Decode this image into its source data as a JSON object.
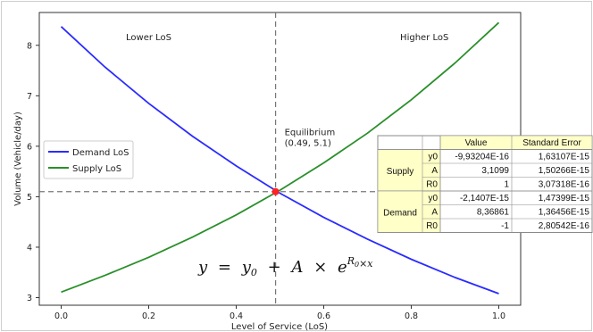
{
  "chart_data": {
    "type": "line",
    "xlabel": "Level of Service (LoS)",
    "ylabel": "Volume (Vehicle/day)",
    "xlim": [
      -0.05,
      1.05
    ],
    "ylim": [
      2.85,
      8.65
    ],
    "xticks": [
      "0.0",
      "0.2",
      "0.4",
      "0.6",
      "0.8",
      "1.0"
    ],
    "yticks": [
      "3",
      "4",
      "5",
      "6",
      "7",
      "8"
    ],
    "grid": false,
    "legend_position": "center-left",
    "series": [
      {
        "name": "Demand LoS",
        "color": "#2b2bff",
        "x": [
          0.0,
          0.1,
          0.2,
          0.3,
          0.4,
          0.5,
          0.6,
          0.7,
          0.8,
          0.9,
          1.0
        ],
        "values": [
          8.37,
          7.57,
          6.85,
          6.2,
          5.61,
          5.07,
          4.59,
          4.16,
          3.76,
          3.4,
          3.08
        ]
      },
      {
        "name": "Supply LoS",
        "color": "#2a8f2a",
        "x": [
          0.0,
          0.1,
          0.2,
          0.3,
          0.4,
          0.5,
          0.6,
          0.7,
          0.8,
          0.9,
          1.0
        ],
        "values": [
          3.11,
          3.44,
          3.8,
          4.2,
          4.64,
          5.13,
          5.67,
          6.26,
          6.92,
          7.65,
          8.45
        ]
      }
    ],
    "equilibrium": {
      "x": 0.49,
      "y": 5.1,
      "label": "Equilibrium",
      "coords": "(0.49, 5.1)",
      "color": "#ff2222"
    },
    "region_labels": [
      {
        "text": "Lower LoS",
        "color": "#2b2bff",
        "x": 0.2,
        "y": 8.1
      },
      {
        "text": "Higher LoS",
        "color": "#2a8f2a",
        "x": 0.83,
        "y": 8.1
      }
    ],
    "formula": {
      "lhs": "y",
      "y0": "y",
      "y0_sub": "0",
      "A": "A",
      "R0": "R",
      "R0_sub": "0",
      "x": "x",
      "plus": "+",
      "times": "×",
      "e": "e",
      "equals": "="
    }
  },
  "table": {
    "headers": [
      "",
      "",
      "Value",
      "Standard Error"
    ],
    "groups": [
      {
        "name": "Supply",
        "rows": [
          {
            "param": "y0",
            "value": "-9,93204E-16",
            "stderr": "1,63107E-15"
          },
          {
            "param": "A",
            "value": "3,1099",
            "stderr": "1,50266E-15"
          },
          {
            "param": "R0",
            "value": "1",
            "stderr": "3,07318E-16"
          }
        ]
      },
      {
        "name": "Demand",
        "rows": [
          {
            "param": "y0",
            "value": "-2,1407E-15",
            "stderr": "1,47399E-15"
          },
          {
            "param": "A",
            "value": "8,36861",
            "stderr": "1,36456E-15"
          },
          {
            "param": "R0",
            "value": "-1",
            "stderr": "2,80542E-16"
          }
        ]
      }
    ],
    "colors": {
      "header_fill": "#ffffc8",
      "cell_fill": "#ffffff",
      "border": "#8a8a8a"
    }
  }
}
